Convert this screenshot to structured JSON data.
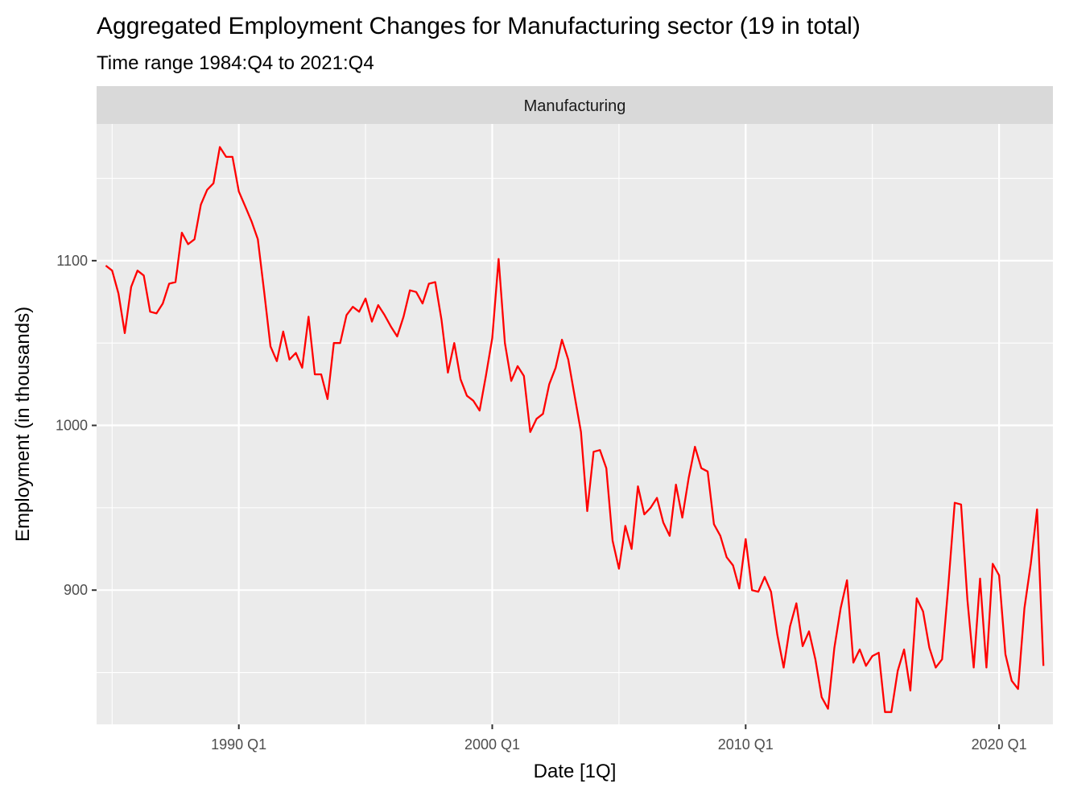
{
  "colors": {
    "panel_background": "#ebebeb",
    "strip_background": "#d9d9d9",
    "grid": "#ffffff",
    "line": "#ff0000"
  },
  "chart_data": {
    "type": "line",
    "title": "Aggregated Employment Changes for Manufacturing sector (19 in total)",
    "subtitle": "Time range 1984:Q4 to 2021:Q4",
    "facet": "Manufacturing",
    "xlabel": "Date [1Q]",
    "ylabel": "Employment (in thousands)",
    "x_tick_labels": [
      "1990 Q1",
      "2000 Q1",
      "2010 Q1",
      "2020 Q1"
    ],
    "y_tick_labels": [
      "900",
      "1000",
      "1100"
    ],
    "x_start": "1984 Q4",
    "x_end": "2021 Q4",
    "grid": true,
    "legend": "none",
    "series": [
      {
        "color": "#ff0000",
        "values": [
          1097,
          1094,
          1080,
          1056,
          1084,
          1094,
          1091,
          1069,
          1068,
          1074,
          1086,
          1087,
          1117,
          1110,
          1113,
          1134,
          1143,
          1147,
          1169,
          1163,
          1163,
          1142,
          1133,
          1124,
          1113,
          1081,
          1048,
          1039,
          1057,
          1040,
          1044,
          1035,
          1066,
          1031,
          1031,
          1016,
          1050,
          1050,
          1067,
          1072,
          1069,
          1077,
          1063,
          1073,
          1067,
          1060,
          1054,
          1066,
          1082,
          1081,
          1074,
          1086,
          1087,
          1064,
          1032,
          1050,
          1028,
          1018,
          1015,
          1009,
          1030,
          1053,
          1101,
          1050,
          1027,
          1036,
          1030,
          996,
          1004,
          1007,
          1025,
          1035,
          1052,
          1040,
          1018,
          996,
          948,
          984,
          985,
          974,
          930,
          913,
          939,
          925,
          963,
          946,
          950,
          956,
          941,
          933,
          964,
          944,
          968,
          987,
          974,
          972,
          940,
          933,
          920,
          915,
          901,
          931,
          900,
          899,
          908,
          899,
          873,
          853,
          878,
          892,
          866,
          875,
          858,
          835,
          828,
          865,
          889,
          906,
          856,
          864,
          854,
          860,
          862,
          826,
          826,
          851,
          864,
          839,
          895,
          887,
          865,
          853,
          858,
          903,
          953,
          952,
          894,
          853,
          907,
          853,
          916,
          909,
          861,
          845,
          840,
          889,
          916,
          949,
          854
        ]
      }
    ]
  }
}
